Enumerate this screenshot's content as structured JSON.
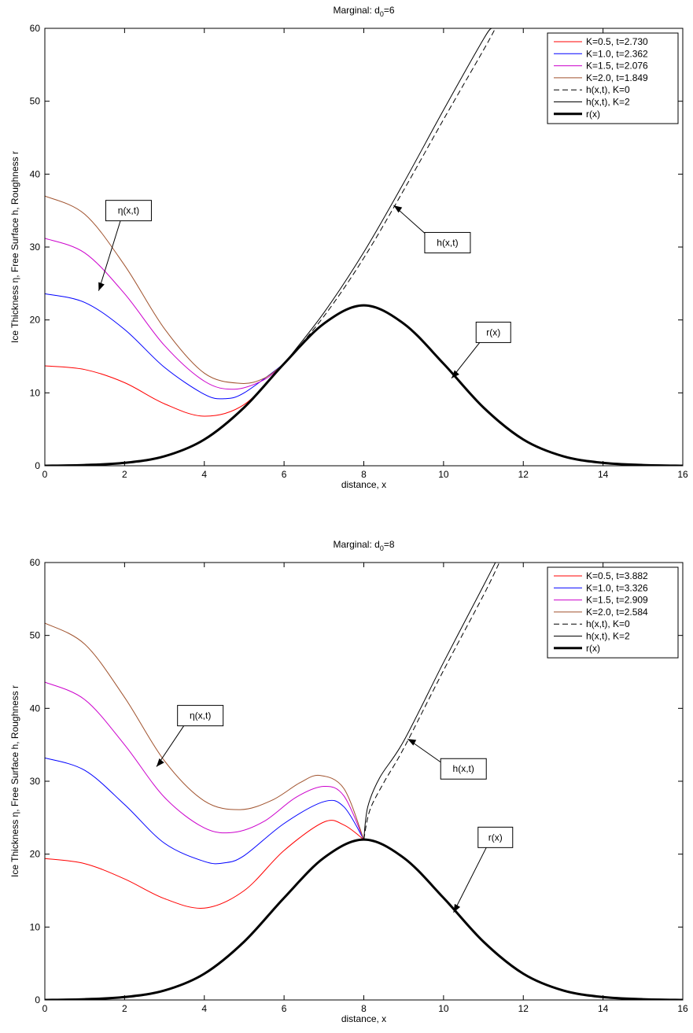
{
  "chart_data": [
    {
      "type": "line",
      "title": "Marginal: d",
      "title_sub": "0",
      "title_tail": "=6",
      "xlabel": "distance, x",
      "ylabel": "Ice Thickness η, Free Surface h, Roughness r",
      "xlim": [
        0,
        16
      ],
      "ylim": [
        0,
        60
      ],
      "xticks": [
        0,
        2,
        4,
        6,
        8,
        10,
        12,
        14,
        16
      ],
      "yticks": [
        0,
        10,
        20,
        30,
        40,
        50,
        60
      ],
      "grid": false,
      "legend_position": "top-right",
      "legend": [
        {
          "label": "K=0.5, t=2.730",
          "color": "#ff0000",
          "style": "solid",
          "width": 1
        },
        {
          "label": "K=1.0, t=2.362",
          "color": "#0000ff",
          "style": "solid",
          "width": 1
        },
        {
          "label": "K=1.5, t=2.076",
          "color": "#cc00cc",
          "style": "solid",
          "width": 1
        },
        {
          "label": "K=2.0, t=1.849",
          "color": "#a0522d",
          "style": "solid",
          "width": 1
        },
        {
          "label": "h(x,t), K=0",
          "color": "#000000",
          "style": "dashed",
          "width": 1
        },
        {
          "label": "h(x,t), K=2",
          "color": "#000000",
          "style": "solid",
          "width": 1
        },
        {
          "label": "r(x)",
          "color": "#000000",
          "style": "solid",
          "width": 3
        }
      ],
      "series": [
        {
          "name": "K=0.5, t=2.730",
          "color": "#ff0000",
          "dash": false,
          "width": 1,
          "x": [
            0,
            1,
            2,
            3,
            4,
            5,
            6
          ],
          "y": [
            13.7,
            13.2,
            11.4,
            8.5,
            6.8,
            8.4,
            14.0
          ]
        },
        {
          "name": "K=1.0, t=2.362",
          "color": "#0000ff",
          "dash": false,
          "width": 1,
          "x": [
            0,
            1,
            2,
            3,
            4,
            4.5,
            5,
            6
          ],
          "y": [
            23.6,
            22.4,
            18.7,
            13.5,
            9.8,
            9.2,
            10.0,
            14.0
          ]
        },
        {
          "name": "K=1.5, t=2.076",
          "color": "#cc00cc",
          "dash": false,
          "width": 1,
          "x": [
            0,
            1,
            2,
            3,
            4,
            4.75,
            5.5,
            6
          ],
          "y": [
            31.2,
            29.2,
            23.6,
            16.5,
            11.6,
            10.5,
            11.8,
            14.0
          ]
        },
        {
          "name": "K=2.0, t=1.849",
          "color": "#a0522d",
          "dash": false,
          "width": 1,
          "x": [
            0,
            1,
            2,
            3,
            4,
            4.9,
            5.5,
            6
          ],
          "y": [
            37.0,
            34.5,
            27.5,
            18.8,
            12.7,
            11.3,
            12.0,
            14.0
          ]
        },
        {
          "name": "h(x,t), K=0",
          "color": "#000000",
          "dash": true,
          "width": 1,
          "x": [
            6,
            7,
            8,
            9,
            10,
            11,
            11.3
          ],
          "y": [
            14.0,
            20.5,
            28.5,
            37.8,
            47.5,
            57.0,
            60
          ]
        },
        {
          "name": "h(x,t), K=2",
          "color": "#000000",
          "dash": false,
          "width": 1,
          "x": [
            6,
            7,
            8,
            9,
            10,
            11,
            11.2
          ],
          "y": [
            14.0,
            21.0,
            29.3,
            38.8,
            48.8,
            58.5,
            60
          ]
        },
        {
          "name": "r(x)",
          "color": "#000000",
          "dash": false,
          "width": 3,
          "x": [
            0,
            1,
            2,
            3,
            4,
            5,
            6,
            7,
            8,
            9,
            10,
            11,
            12,
            13,
            14,
            15,
            16
          ],
          "y": [
            0.0,
            0.1,
            0.4,
            1.3,
            3.6,
            8.0,
            14.0,
            19.5,
            22.0,
            19.5,
            14.0,
            8.0,
            3.6,
            1.3,
            0.4,
            0.1,
            0.0
          ]
        }
      ],
      "annotations": [
        {
          "text": "η(x,t)",
          "box": [
            2.1,
            35.0
          ],
          "tip": [
            1.35,
            24.0
          ]
        },
        {
          "text": "h(x,t)",
          "box": [
            10.1,
            30.6
          ],
          "tip": [
            8.75,
            35.7
          ]
        },
        {
          "text": "r(x)",
          "box": [
            11.25,
            18.3
          ],
          "tip": [
            10.2,
            12.0
          ]
        }
      ]
    },
    {
      "type": "line",
      "title": "Marginal: d",
      "title_sub": "0",
      "title_tail": "=8",
      "xlabel": "distance, x",
      "ylabel": "Ice Thickness η, Free Surface h, Roughness r",
      "xlim": [
        0,
        16
      ],
      "ylim": [
        0,
        60
      ],
      "xticks": [
        0,
        2,
        4,
        6,
        8,
        10,
        12,
        14,
        16
      ],
      "yticks": [
        0,
        10,
        20,
        30,
        40,
        50,
        60
      ],
      "grid": false,
      "legend_position": "top-right",
      "legend": [
        {
          "label": "K=0.5, t=3.882",
          "color": "#ff0000",
          "style": "solid",
          "width": 1
        },
        {
          "label": "K=1.0, t=3.326",
          "color": "#0000ff",
          "style": "solid",
          "width": 1
        },
        {
          "label": "K=1.5, t=2.909",
          "color": "#cc00cc",
          "style": "solid",
          "width": 1
        },
        {
          "label": "K=2.0, t=2.584",
          "color": "#a0522d",
          "style": "solid",
          "width": 1
        },
        {
          "label": "h(x,t), K=0",
          "color": "#000000",
          "style": "dashed",
          "width": 1
        },
        {
          "label": "h(x,t), K=2",
          "color": "#000000",
          "style": "solid",
          "width": 1
        },
        {
          "label": "r(x)",
          "color": "#000000",
          "style": "solid",
          "width": 3
        }
      ],
      "series": [
        {
          "name": "K=0.5, t=3.882",
          "color": "#ff0000",
          "dash": false,
          "width": 1,
          "x": [
            0,
            1,
            2,
            3,
            4,
            5,
            6,
            7,
            7.5,
            8
          ],
          "y": [
            19.4,
            18.7,
            16.6,
            13.9,
            12.6,
            15.0,
            20.5,
            24.4,
            24.0,
            22.0
          ]
        },
        {
          "name": "K=1.0, t=3.326",
          "color": "#0000ff",
          "dash": false,
          "width": 1,
          "x": [
            0,
            1,
            2,
            3,
            4,
            4.5,
            5,
            6,
            7,
            7.5,
            8
          ],
          "y": [
            33.2,
            31.5,
            26.8,
            21.5,
            19.0,
            18.8,
            19.8,
            24.2,
            27.2,
            26.5,
            22.0
          ]
        },
        {
          "name": "K=1.5, t=2.909",
          "color": "#cc00cc",
          "dash": false,
          "width": 1,
          "x": [
            0,
            1,
            2,
            3,
            4,
            4.75,
            5.5,
            6.3,
            7,
            7.5,
            8
          ],
          "y": [
            43.6,
            41.2,
            35.0,
            27.8,
            23.6,
            23.0,
            24.5,
            27.8,
            29.3,
            28.0,
            22.0
          ]
        },
        {
          "name": "K=2.0, t=2.584",
          "color": "#a0522d",
          "dash": false,
          "width": 1,
          "x": [
            0,
            1,
            2,
            3,
            4,
            4.9,
            5.7,
            6.4,
            6.9,
            7.5,
            8
          ],
          "y": [
            51.7,
            48.8,
            41.5,
            32.8,
            27.3,
            26.1,
            27.4,
            29.8,
            30.8,
            29.0,
            22.0
          ]
        },
        {
          "name": "h(x,t), K=0",
          "color": "#000000",
          "dash": true,
          "width": 1,
          "x": [
            8,
            8.15,
            8.5,
            9,
            10,
            11,
            11.4
          ],
          "y": [
            22.0,
            26.0,
            29.8,
            34.5,
            45.2,
            55.5,
            60
          ]
        },
        {
          "name": "h(x,t), K=2",
          "color": "#000000",
          "dash": false,
          "width": 1,
          "x": [
            8,
            8.1,
            8.4,
            9,
            10,
            11,
            11.3
          ],
          "y": [
            22.0,
            26.5,
            30.5,
            35.5,
            46.3,
            56.8,
            60
          ]
        },
        {
          "name": "r(x)",
          "color": "#000000",
          "dash": false,
          "width": 3,
          "x": [
            0,
            1,
            2,
            3,
            4,
            5,
            6,
            7,
            8,
            9,
            10,
            11,
            12,
            13,
            14,
            15,
            16
          ],
          "y": [
            0.0,
            0.1,
            0.4,
            1.3,
            3.6,
            8.0,
            14.0,
            19.5,
            22.0,
            19.5,
            14.0,
            8.0,
            3.6,
            1.3,
            0.4,
            0.1,
            0.0
          ]
        }
      ],
      "annotations": [
        {
          "text": "η(x,t)",
          "box": [
            3.9,
            39.0
          ],
          "tip": [
            2.8,
            32.0
          ]
        },
        {
          "text": "h(x,t)",
          "box": [
            10.5,
            31.7
          ],
          "tip": [
            9.1,
            35.8
          ]
        },
        {
          "text": "r(x)",
          "box": [
            11.3,
            22.3
          ],
          "tip": [
            10.25,
            12.0
          ]
        }
      ]
    }
  ]
}
